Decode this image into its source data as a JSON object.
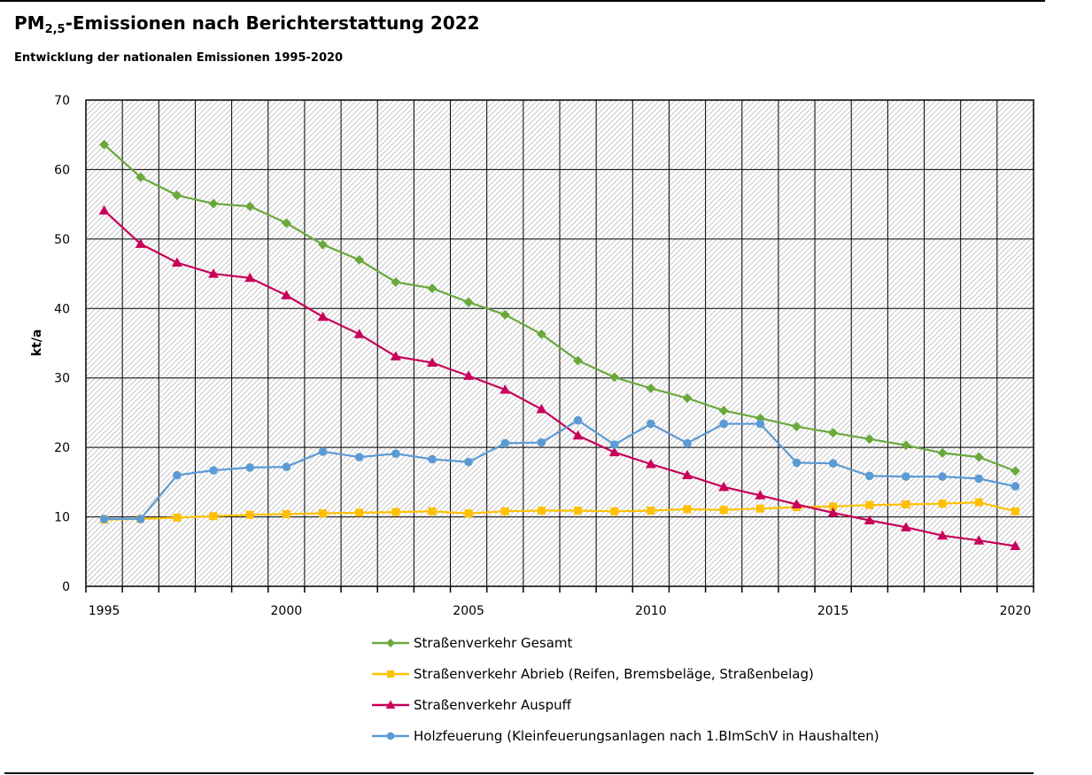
{
  "header": {
    "title_main": "PM",
    "title_sub": "2,5",
    "title_rest": "-Emissionen nach Berichterstattung 2022",
    "subtitle": "Entwicklung der nationalen Emissionen 1995-2020"
  },
  "chart_data": {
    "type": "line",
    "ylabel": "kt/a",
    "ylim": [
      0,
      70
    ],
    "yticks": [
      0,
      10,
      20,
      30,
      40,
      50,
      60,
      70
    ],
    "xlim": [
      1994.5,
      2020.5
    ],
    "xticks": [
      1995,
      2000,
      2005,
      2010,
      2015,
      2020
    ],
    "grid": true,
    "legend_position": "bottom",
    "x": [
      1995,
      1996,
      1997,
      1998,
      1999,
      2000,
      2001,
      2002,
      2003,
      2004,
      2005,
      2006,
      2007,
      2008,
      2009,
      2010,
      2011,
      2012,
      2013,
      2014,
      2015,
      2016,
      2017,
      2018,
      2019,
      2020
    ],
    "series": [
      {
        "name": "Straßenverkehr Gesamt",
        "color": "#6aa83c",
        "marker": "diamond",
        "values": [
          63.6,
          58.9,
          56.3,
          55.1,
          54.7,
          52.3,
          49.2,
          47.0,
          43.8,
          42.9,
          40.9,
          39.1,
          36.3,
          32.5,
          30.1,
          28.5,
          27.1,
          25.3,
          24.2,
          23.0,
          22.1,
          21.2,
          20.3,
          19.2,
          18.6,
          16.6
        ]
      },
      {
        "name": "Straßenverkehr Abrieb (Reifen, Bremsbeläge, Straßenbelag)",
        "color": "#ffc000",
        "marker": "square",
        "values": [
          9.6,
          9.7,
          9.9,
          10.1,
          10.3,
          10.4,
          10.5,
          10.6,
          10.7,
          10.8,
          10.5,
          10.8,
          10.9,
          10.9,
          10.8,
          10.9,
          11.1,
          11.0,
          11.2,
          11.4,
          11.5,
          11.7,
          11.8,
          11.9,
          12.1,
          10.8
        ]
      },
      {
        "name": "Straßenverkehr Auspuff",
        "color": "#c8005a",
        "marker": "triangle",
        "values": [
          54.1,
          49.3,
          46.6,
          45.0,
          44.4,
          41.9,
          38.8,
          36.3,
          33.1,
          32.2,
          30.3,
          28.3,
          25.5,
          21.7,
          19.3,
          17.6,
          16.0,
          14.3,
          13.1,
          11.8,
          10.6,
          9.5,
          8.5,
          7.3,
          6.6,
          5.8
        ]
      },
      {
        "name": "Holzfeuerung (Kleinfeuerungsanlagen nach 1.BImSchV in Haushalten)",
        "color": "#5b9bd5",
        "marker": "circle",
        "values": [
          9.7,
          9.7,
          16.0,
          16.7,
          17.1,
          17.2,
          19.4,
          18.6,
          19.1,
          18.3,
          17.9,
          20.6,
          20.7,
          23.9,
          20.4,
          23.4,
          20.6,
          23.4,
          23.4,
          17.8,
          17.7,
          15.9,
          15.8,
          15.8,
          15.5,
          14.4
        ]
      }
    ]
  }
}
